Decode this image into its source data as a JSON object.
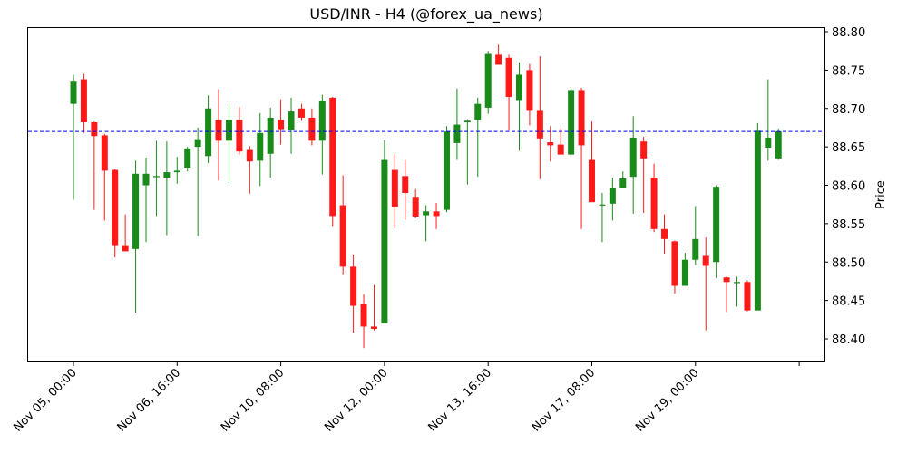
{
  "chart_data": {
    "type": "candlestick",
    "title": "USD/INR - H4 (@forex_ua_news)",
    "xlabel": "",
    "ylabel": "Price",
    "ylim": [
      88.37,
      88.805
    ],
    "grid": false,
    "legend": null,
    "reference_line": {
      "value": 88.67,
      "color": "#0000ff",
      "style": "dashed"
    },
    "colors": {
      "up": "#1a8a1a",
      "down": "#ff1a1a"
    },
    "x_ticks": [
      {
        "index": 0,
        "label": "Nov 05, 00:00"
      },
      {
        "index": 10,
        "label": "Nov 06, 16:00"
      },
      {
        "index": 20,
        "label": "Nov 10, 08:00"
      },
      {
        "index": 30,
        "label": "Nov 12, 00:00"
      },
      {
        "index": 40,
        "label": "Nov 13, 16:00"
      },
      {
        "index": 50,
        "label": "Nov 17, 08:00"
      },
      {
        "index": 60,
        "label": "Nov 19, 00:00"
      },
      {
        "index": 70,
        "label": ""
      }
    ],
    "y_ticks": [
      "88.40",
      "88.45",
      "88.50",
      "88.55",
      "88.60",
      "88.65",
      "88.70",
      "88.75",
      "88.80"
    ],
    "candles": [
      {
        "o": 88.706,
        "h": 88.744,
        "l": 88.581,
        "c": 88.736
      },
      {
        "o": 88.738,
        "h": 88.745,
        "l": 88.668,
        "c": 88.682
      },
      {
        "o": 88.682,
        "h": 88.683,
        "l": 88.568,
        "c": 88.664
      },
      {
        "o": 88.665,
        "h": 88.667,
        "l": 88.554,
        "c": 88.619
      },
      {
        "o": 88.62,
        "h": 88.621,
        "l": 88.506,
        "c": 88.522
      },
      {
        "o": 88.522,
        "h": 88.562,
        "l": 88.514,
        "c": 88.514
      },
      {
        "o": 88.517,
        "h": 88.632,
        "l": 88.434,
        "c": 88.615
      },
      {
        "o": 88.6,
        "h": 88.636,
        "l": 88.526,
        "c": 88.615
      },
      {
        "o": 88.612,
        "h": 88.658,
        "l": 88.56,
        "c": 88.612
      },
      {
        "o": 88.61,
        "h": 88.657,
        "l": 88.535,
        "c": 88.617
      },
      {
        "o": 88.617,
        "h": 88.637,
        "l": 88.602,
        "c": 88.619
      },
      {
        "o": 88.623,
        "h": 88.65,
        "l": 88.618,
        "c": 88.648
      },
      {
        "o": 88.65,
        "h": 88.675,
        "l": 88.534,
        "c": 88.66
      },
      {
        "o": 88.638,
        "h": 88.717,
        "l": 88.629,
        "c": 88.7
      },
      {
        "o": 88.685,
        "h": 88.725,
        "l": 88.606,
        "c": 88.658
      },
      {
        "o": 88.658,
        "h": 88.706,
        "l": 88.603,
        "c": 88.685
      },
      {
        "o": 88.685,
        "h": 88.702,
        "l": 88.64,
        "c": 88.644
      },
      {
        "o": 88.646,
        "h": 88.651,
        "l": 88.589,
        "c": 88.631
      },
      {
        "o": 88.632,
        "h": 88.694,
        "l": 88.599,
        "c": 88.668
      },
      {
        "o": 88.641,
        "h": 88.701,
        "l": 88.61,
        "c": 88.688
      },
      {
        "o": 88.685,
        "h": 88.712,
        "l": 88.653,
        "c": 88.673
      },
      {
        "o": 88.672,
        "h": 88.714,
        "l": 88.641,
        "c": 88.696
      },
      {
        "o": 88.7,
        "h": 88.706,
        "l": 88.684,
        "c": 88.688
      },
      {
        "o": 88.688,
        "h": 88.7,
        "l": 88.652,
        "c": 88.658
      },
      {
        "o": 88.658,
        "h": 88.718,
        "l": 88.614,
        "c": 88.71
      },
      {
        "o": 88.714,
        "h": 88.715,
        "l": 88.546,
        "c": 88.56
      },
      {
        "o": 88.574,
        "h": 88.613,
        "l": 88.484,
        "c": 88.494
      },
      {
        "o": 88.494,
        "h": 88.51,
        "l": 88.408,
        "c": 88.443
      },
      {
        "o": 88.445,
        "h": 88.458,
        "l": 88.388,
        "c": 88.416
      },
      {
        "o": 88.416,
        "h": 88.47,
        "l": 88.411,
        "c": 88.413
      },
      {
        "o": 88.42,
        "h": 88.659,
        "l": 88.42,
        "c": 88.633
      },
      {
        "o": 88.62,
        "h": 88.641,
        "l": 88.544,
        "c": 88.572
      },
      {
        "o": 88.612,
        "h": 88.633,
        "l": 88.555,
        "c": 88.59
      },
      {
        "o": 88.585,
        "h": 88.595,
        "l": 88.557,
        "c": 88.559
      },
      {
        "o": 88.561,
        "h": 88.574,
        "l": 88.527,
        "c": 88.566
      },
      {
        "o": 88.566,
        "h": 88.577,
        "l": 88.543,
        "c": 88.56
      },
      {
        "o": 88.568,
        "h": 88.677,
        "l": 88.565,
        "c": 88.67
      },
      {
        "o": 88.655,
        "h": 88.726,
        "l": 88.633,
        "c": 88.679
      },
      {
        "o": 88.682,
        "h": 88.686,
        "l": 88.601,
        "c": 88.684
      },
      {
        "o": 88.685,
        "h": 88.714,
        "l": 88.611,
        "c": 88.706
      },
      {
        "o": 88.701,
        "h": 88.775,
        "l": 88.693,
        "c": 88.771
      },
      {
        "o": 88.77,
        "h": 88.783,
        "l": 88.757,
        "c": 88.757
      },
      {
        "o": 88.766,
        "h": 88.77,
        "l": 88.671,
        "c": 88.715
      },
      {
        "o": 88.711,
        "h": 88.76,
        "l": 88.645,
        "c": 88.744
      },
      {
        "o": 88.75,
        "h": 88.758,
        "l": 88.678,
        "c": 88.698
      },
      {
        "o": 88.698,
        "h": 88.768,
        "l": 88.608,
        "c": 88.661
      },
      {
        "o": 88.656,
        "h": 88.677,
        "l": 88.631,
        "c": 88.652
      },
      {
        "o": 88.653,
        "h": 88.674,
        "l": 88.64,
        "c": 88.64
      },
      {
        "o": 88.64,
        "h": 88.726,
        "l": 88.64,
        "c": 88.724
      },
      {
        "o": 88.724,
        "h": 88.727,
        "l": 88.543,
        "c": 88.652
      },
      {
        "o": 88.633,
        "h": 88.683,
        "l": 88.578,
        "c": 88.578
      },
      {
        "o": 88.575,
        "h": 88.59,
        "l": 88.526,
        "c": 88.575
      },
      {
        "o": 88.576,
        "h": 88.61,
        "l": 88.554,
        "c": 88.596
      },
      {
        "o": 88.596,
        "h": 88.618,
        "l": 88.596,
        "c": 88.609
      },
      {
        "o": 88.611,
        "h": 88.69,
        "l": 88.563,
        "c": 88.662
      },
      {
        "o": 88.657,
        "h": 88.663,
        "l": 88.564,
        "c": 88.635
      },
      {
        "o": 88.61,
        "h": 88.628,
        "l": 88.539,
        "c": 88.543
      },
      {
        "o": 88.543,
        "h": 88.562,
        "l": 88.511,
        "c": 88.53
      },
      {
        "o": 88.527,
        "h": 88.528,
        "l": 88.459,
        "c": 88.469
      },
      {
        "o": 88.469,
        "h": 88.512,
        "l": 88.469,
        "c": 88.503
      },
      {
        "o": 88.503,
        "h": 88.573,
        "l": 88.496,
        "c": 88.53
      },
      {
        "o": 88.508,
        "h": 88.532,
        "l": 88.411,
        "c": 88.495
      },
      {
        "o": 88.5,
        "h": 88.6,
        "l": 88.479,
        "c": 88.598
      },
      {
        "o": 88.48,
        "h": 88.481,
        "l": 88.435,
        "c": 88.474
      },
      {
        "o": 88.474,
        "h": 88.481,
        "l": 88.442,
        "c": 88.474
      },
      {
        "o": 88.474,
        "h": 88.476,
        "l": 88.436,
        "c": 88.437
      },
      {
        "o": 88.437,
        "h": 88.681,
        "l": 88.437,
        "c": 88.671
      },
      {
        "o": 88.649,
        "h": 88.738,
        "l": 88.632,
        "c": 88.662
      },
      {
        "o": 88.635,
        "h": 88.674,
        "l": 88.633,
        "c": 88.67
      }
    ]
  },
  "title": "USD/INR - H4 (@forex_ua_news)",
  "yaxis_label": "Price"
}
